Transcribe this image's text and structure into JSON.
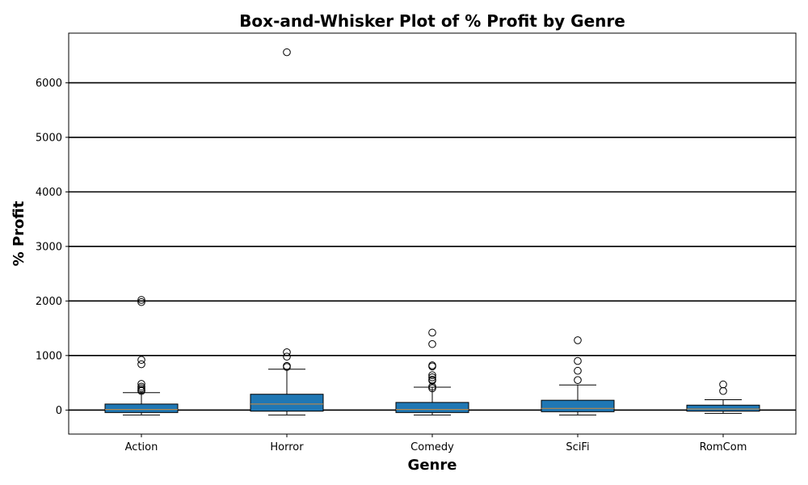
{
  "chart_data": {
    "type": "boxplot",
    "title": "Box-and-Whisker Plot of % Profit by Genre",
    "xlabel": "Genre",
    "ylabel": "% Profit",
    "ylim": [
      -440,
      6910
    ],
    "yticks": [
      0,
      1000,
      2000,
      3000,
      4000,
      5000,
      6000
    ],
    "grid": "horizontal",
    "colors": {
      "box_fill": "#1f77b4",
      "median": "#d08a3a",
      "edge": "#000000",
      "grid": "#000000"
    },
    "categories": [
      "Action",
      "Horror",
      "Comedy",
      "SciFi",
      "RomCom"
    ],
    "boxes": [
      {
        "label": "Action",
        "whislo": -90,
        "q1": -45,
        "median": 10,
        "q3": 110,
        "whishi": 320,
        "fliers": [
          2020,
          1980,
          920,
          840,
          480,
          430,
          400,
          370,
          350
        ]
      },
      {
        "label": "Horror",
        "whislo": -90,
        "q1": -20,
        "median": 110,
        "q3": 290,
        "whishi": 750,
        "fliers": [
          6560,
          1060,
          980,
          810,
          790
        ]
      },
      {
        "label": "Comedy",
        "whislo": -90,
        "q1": -45,
        "median": 10,
        "q3": 140,
        "whishi": 420,
        "fliers": [
          1420,
          1210,
          820,
          800,
          640,
          600,
          560,
          540,
          430,
          400
        ]
      },
      {
        "label": "SciFi",
        "whislo": -90,
        "q1": -30,
        "median": 30,
        "q3": 180,
        "whishi": 460,
        "fliers": [
          1280,
          900,
          720,
          550
        ]
      },
      {
        "label": "RomCom",
        "whislo": -60,
        "q1": -20,
        "median": 20,
        "q3": 90,
        "whishi": 190,
        "fliers": [
          470,
          350
        ]
      }
    ]
  }
}
